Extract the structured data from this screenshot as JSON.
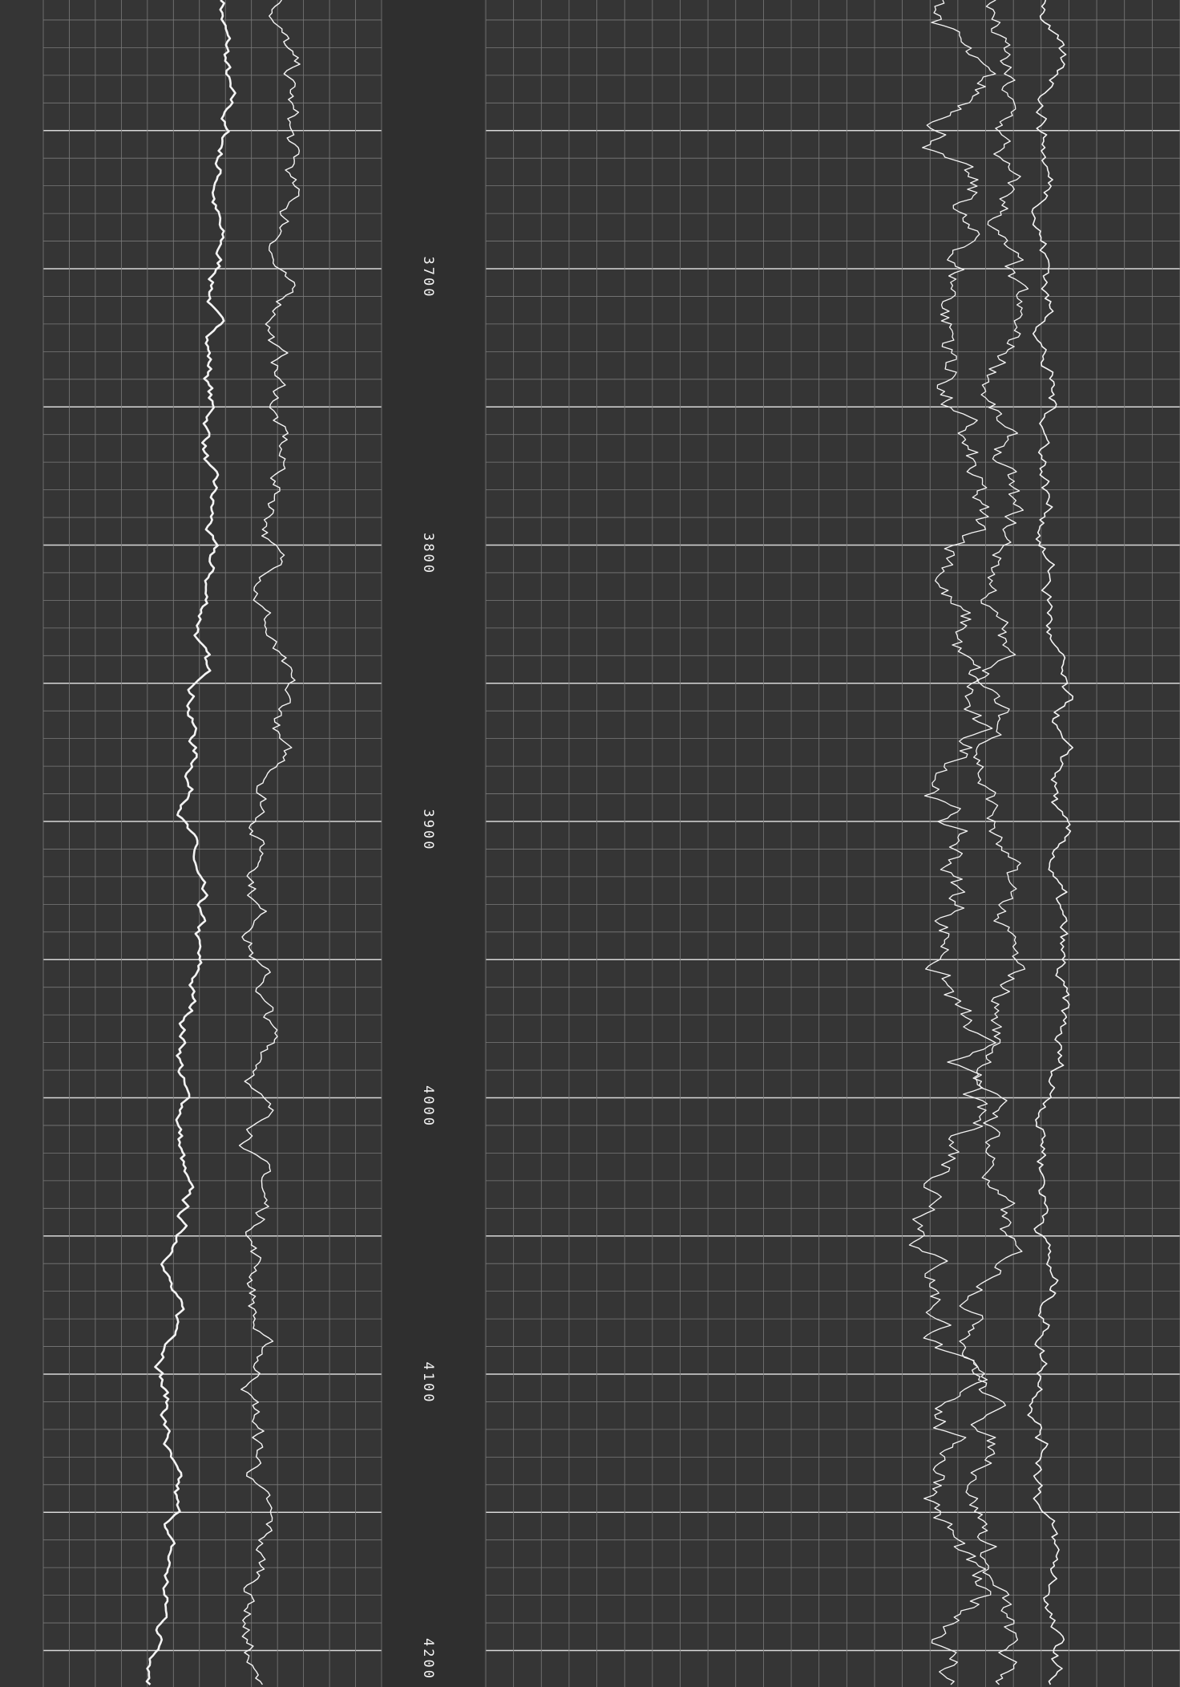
{
  "depth_labels": [
    "3700",
    "3800",
    "3900",
    "4000",
    "4100",
    "4200"
  ]
}
